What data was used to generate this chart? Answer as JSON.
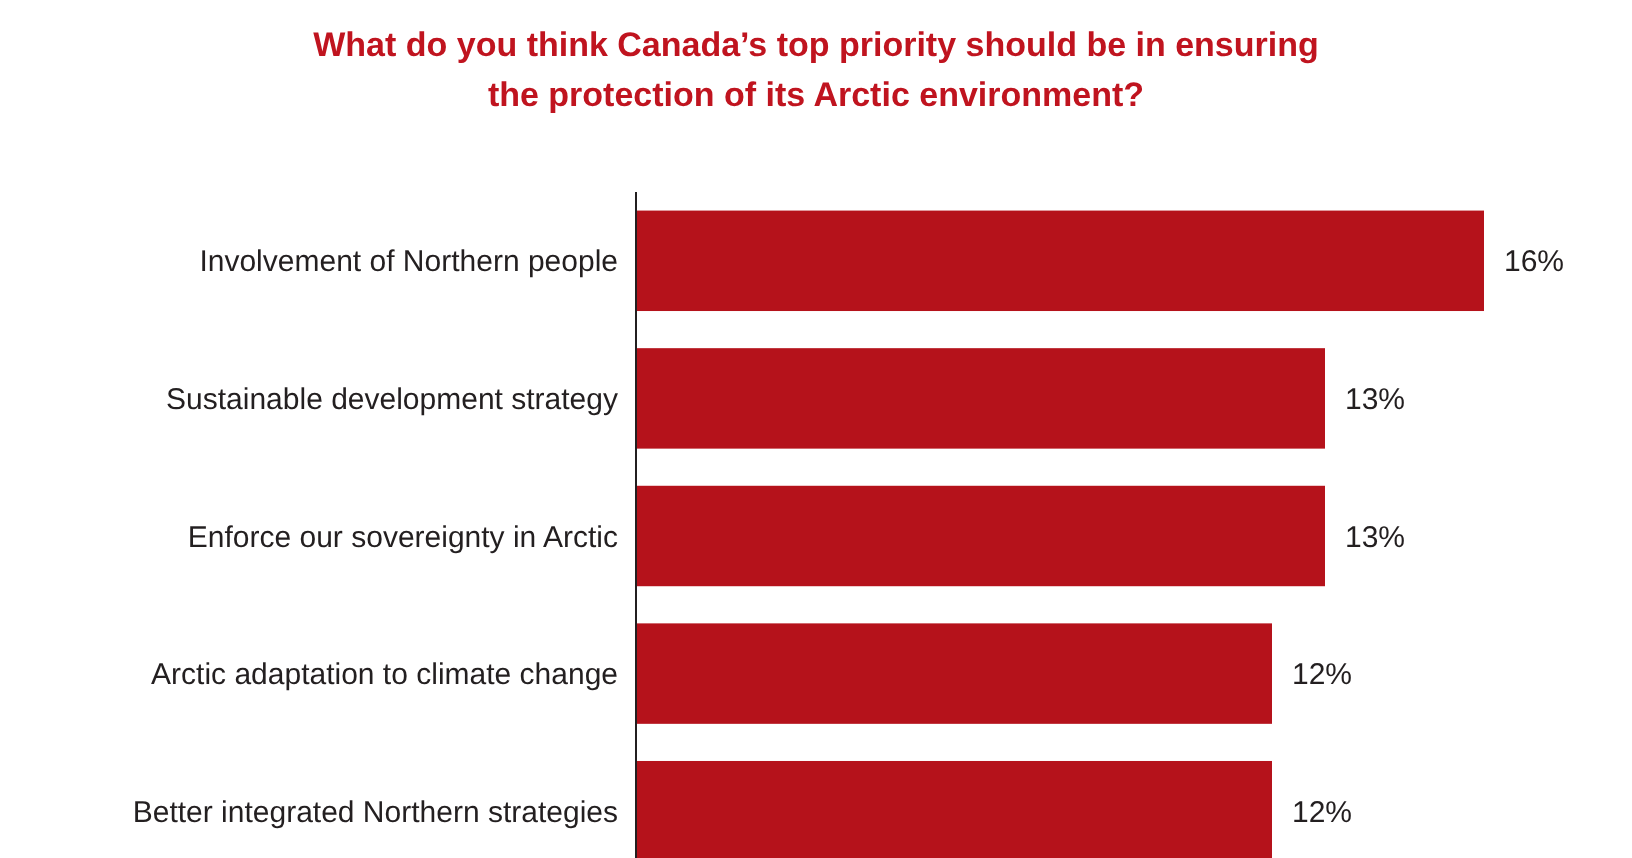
{
  "chart_data": {
    "type": "bar",
    "orientation": "horizontal",
    "title": "What do you think Canada’s top priority should be in ensuring\nthe protection of its Arctic environment?",
    "categories": [
      "Involvement of Northern people",
      "Sustainable development strategy",
      "Enforce our sovereignty in Arctic",
      "Arctic adaptation to climate change",
      "Better integrated Northern strategies"
    ],
    "values": [
      16,
      13,
      13,
      12,
      12
    ],
    "value_labels": [
      "16%",
      "13%",
      "13%",
      "12%",
      "12%"
    ],
    "color": "#b5121b"
  }
}
